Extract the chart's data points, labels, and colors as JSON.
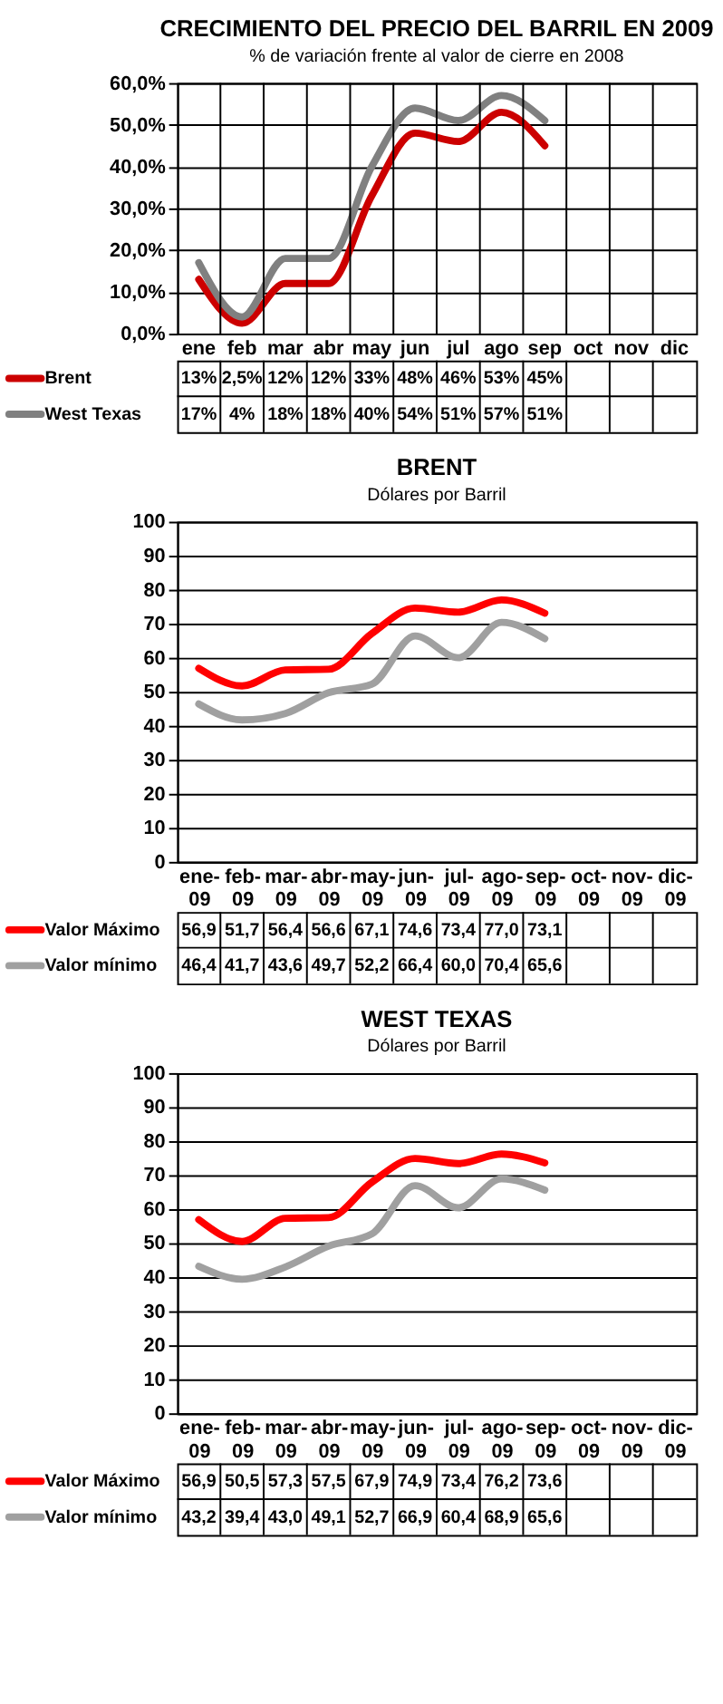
{
  "chart_data": [
    {
      "type": "line",
      "title": "CRECIMIENTO DEL PRECIO DEL BARRIL  EN 2009",
      "subtitle": "% de variación frente al valor de cierre en 2008",
      "categories": [
        "ene",
        "feb",
        "mar",
        "abr",
        "may",
        "jun",
        "jul",
        "ago",
        "sep",
        "oct",
        "nov",
        "dic"
      ],
      "ylim": [
        0,
        60
      ],
      "yticks": [
        {
          "value": 0,
          "label": "0,0%"
        },
        {
          "value": 10,
          "label": "10,0%"
        },
        {
          "value": 20,
          "label": "20,0%"
        },
        {
          "value": 30,
          "label": "30,0%"
        },
        {
          "value": 40,
          "label": "40,0%"
        },
        {
          "value": 50,
          "label": "50,0%"
        },
        {
          "value": 60,
          "label": "60,0%"
        }
      ],
      "grid": true,
      "legend": "bottom",
      "series": [
        {
          "name": "Brent",
          "color": "#cc0000",
          "values": [
            13,
            2.5,
            12,
            12,
            33,
            48,
            46,
            53,
            45,
            null,
            null,
            null
          ],
          "value_labels": [
            "13%",
            "2,5%",
            "12%",
            "12%",
            "33%",
            "48%",
            "46%",
            "53%",
            "45%",
            null,
            null,
            null
          ]
        },
        {
          "name": "West Texas",
          "color": "#808080",
          "values": [
            17,
            4,
            18,
            18,
            40,
            54,
            51,
            57,
            51,
            null,
            null,
            null
          ],
          "value_labels": [
            "17%",
            "4%",
            "18%",
            "18%",
            "40%",
            "54%",
            "51%",
            "57%",
            "51%",
            null,
            null,
            null
          ]
        }
      ]
    },
    {
      "type": "line",
      "title": "BRENT",
      "subtitle": "Dólares por Barril",
      "categories": [
        "ene-09",
        "feb-09",
        "mar-09",
        "abr-09",
        "may-09",
        "jun-09",
        "jul-09",
        "ago-09",
        "sep-09",
        "oct-09",
        "nov-09",
        "dic-09"
      ],
      "ylim": [
        0,
        100
      ],
      "yticks": [
        0,
        10,
        20,
        30,
        40,
        50,
        60,
        70,
        80,
        90,
        100
      ],
      "grid": "y",
      "legend": "bottom",
      "series": [
        {
          "name": "Valor Máximo",
          "color": "#ff0000",
          "values": [
            56.9,
            51.7,
            56.4,
            56.6,
            67.1,
            74.6,
            73.4,
            77.0,
            73.1,
            null,
            null,
            null
          ],
          "value_labels": [
            "56,9",
            "51,7",
            "56,4",
            "56,6",
            "67,1",
            "74,6",
            "73,4",
            "77,0",
            "73,1",
            null,
            null,
            null
          ]
        },
        {
          "name": "Valor mínimo",
          "color": "#a0a0a0",
          "values": [
            46.4,
            41.7,
            43.6,
            49.7,
            52.2,
            66.4,
            60.0,
            70.4,
            65.6,
            null,
            null,
            null
          ],
          "value_labels": [
            "46,4",
            "41,7",
            "43,6",
            "49,7",
            "52,2",
            "66,4",
            "60,0",
            "70,4",
            "65,6",
            null,
            null,
            null
          ]
        }
      ]
    },
    {
      "type": "line",
      "title": "WEST TEXAS",
      "subtitle": "Dólares por Barril",
      "categories": [
        "ene-09",
        "feb-09",
        "mar-09",
        "abr-09",
        "may-09",
        "jun-09",
        "jul-09",
        "ago-09",
        "sep-09",
        "oct-09",
        "nov-09",
        "dic-09"
      ],
      "ylim": [
        0,
        100
      ],
      "yticks": [
        0,
        10,
        20,
        30,
        40,
        50,
        60,
        70,
        80,
        90,
        100
      ],
      "grid": "y",
      "legend": "bottom",
      "series": [
        {
          "name": "Valor Máximo",
          "color": "#ff0000",
          "values": [
            56.9,
            50.5,
            57.3,
            57.5,
            67.9,
            74.9,
            73.4,
            76.2,
            73.6,
            null,
            null,
            null
          ],
          "value_labels": [
            "56,9",
            "50,5",
            "57,3",
            "57,5",
            "67,9",
            "74,9",
            "73,4",
            "76,2",
            "73,6",
            null,
            null,
            null
          ]
        },
        {
          "name": "Valor mínimo",
          "color": "#a0a0a0",
          "values": [
            43.2,
            39.4,
            43.0,
            49.1,
            52.7,
            66.9,
            60.4,
            68.9,
            65.6,
            null,
            null,
            null
          ],
          "value_labels": [
            "43,2",
            "39,4",
            "43,0",
            "49,1",
            "52,7",
            "66,9",
            "60,4",
            "68,9",
            "65,6",
            null,
            null,
            null
          ]
        }
      ]
    }
  ]
}
